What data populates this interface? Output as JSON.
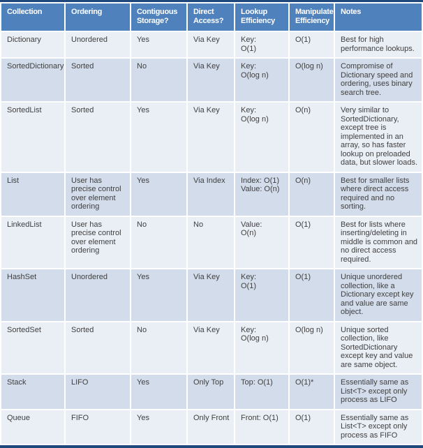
{
  "table": {
    "columns": [
      "Collection",
      "Ordering",
      "Contiguous Storage?",
      "Direct Access?",
      "Lookup Efficiency",
      "Manipulate Efficiency",
      "Notes"
    ],
    "rows": [
      {
        "cells": [
          "Dictionary",
          "Unordered",
          "Yes",
          "Via Key",
          "Key:\nO(1)",
          "O(1)",
          "Best for high performance lookups."
        ]
      },
      {
        "cells": [
          "SortedDictionary",
          "Sorted",
          "No",
          "Via Key",
          "Key:\nO(log n)",
          "O(log n)",
          "Compromise of Dictionary speed and ordering, uses binary search tree."
        ]
      },
      {
        "cells": [
          "SortedList",
          "Sorted",
          "Yes",
          "Via Key",
          "Key:\nO(log n)",
          "O(n)",
          "Very similar to SortedDictionary, except tree is implemented in an array, so has faster lookup on preloaded data, but slower loads."
        ]
      },
      {
        "cells": [
          "List",
          "User has precise control over element ordering",
          "Yes",
          "Via Index",
          "Index: O(1)\nValue: O(n)",
          "O(n)",
          "Best for smaller lists where direct access required and no sorting."
        ]
      },
      {
        "cells": [
          "LinkedList",
          "User has precise control over element ordering",
          "No",
          "No",
          "Value:\nO(n)",
          "O(1)",
          "Best for lists where inserting/deleting in middle is common and no direct access required."
        ]
      },
      {
        "cells": [
          "HashSet",
          "Unordered",
          "Yes",
          "Via Key",
          "Key:\nO(1)",
          "O(1)",
          "Unique unordered collection, like a Dictionary except key and value are same object."
        ]
      },
      {
        "cells": [
          "SortedSet",
          "Sorted",
          "No",
          "Via Key",
          "Key:\nO(log n)",
          "O(log n)",
          "Unique sorted collection, like SortedDictionary except key and value are same object."
        ]
      },
      {
        "cells": [
          "Stack",
          "LIFO",
          "Yes",
          "Only Top",
          "Top: O(1)",
          "O(1)*",
          "Essentially same as List<T> except only process as LIFO"
        ]
      },
      {
        "cells": [
          "Queue",
          "FIFO",
          "Yes",
          "Only Front",
          "Front: O(1)",
          "O(1)",
          "Essentially same as List<T> except only process as FIFO"
        ]
      }
    ],
    "colors": {
      "outer_border": "#1F497D",
      "header_bg": "#4F81BD",
      "header_text": "#FFFFFF",
      "row_odd_bg": "#EAEEF5",
      "row_even_bg": "#D3DCEA",
      "body_text": "#404040",
      "gap": "#FFFFFF"
    }
  }
}
